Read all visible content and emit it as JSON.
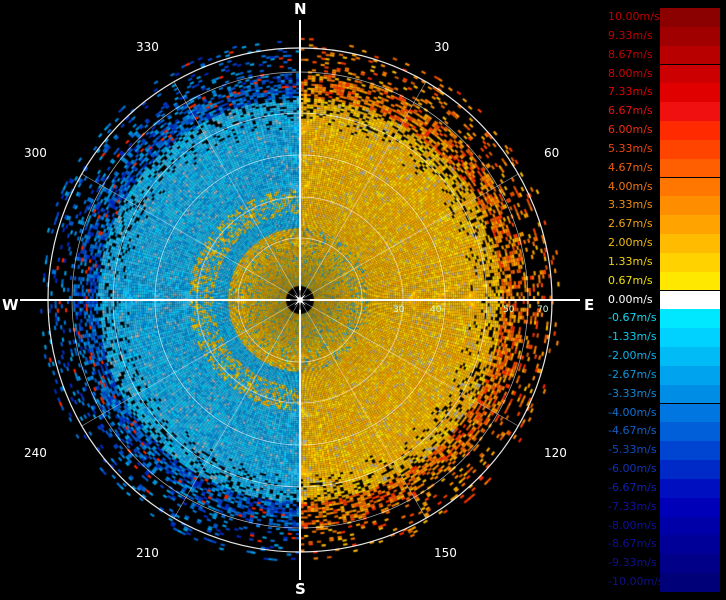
{
  "compass": {
    "north": "N",
    "south": "S",
    "east": "E",
    "west": "W",
    "azimuth_labels": [
      "30",
      "60",
      "120",
      "150",
      "210",
      "240",
      "300",
      "330"
    ]
  },
  "range_rings": {
    "labels": [
      "30",
      "40",
      "50",
      "70"
    ]
  },
  "legend": {
    "entries": [
      {
        "label": "10.00m/s",
        "color": "#8b0000",
        "text_color": "#c00000"
      },
      {
        "label": "9.33m/s",
        "color": "#a00000",
        "text_color": "#c00000"
      },
      {
        "label": "8.67m/s",
        "color": "#b80000",
        "text_color": "#c00000"
      },
      {
        "label": "8.00m/s",
        "color": "#cc0000",
        "text_color": "#d00000"
      },
      {
        "label": "7.33m/s",
        "color": "#e00000",
        "text_color": "#e00000"
      },
      {
        "label": "6.67m/s",
        "color": "#f01010",
        "text_color": "#e81010"
      },
      {
        "label": "6.00m/s",
        "color": "#ff2a00",
        "text_color": "#f02a10"
      },
      {
        "label": "5.33m/s",
        "color": "#ff4400",
        "text_color": "#f04410"
      },
      {
        "label": "4.67m/s",
        "color": "#ff5f00",
        "text_color": "#f05f10"
      },
      {
        "label": "4.00m/s",
        "color": "#ff7700",
        "text_color": "#f07710"
      },
      {
        "label": "3.33m/s",
        "color": "#ff8d00",
        "text_color": "#f08d10"
      },
      {
        "label": "2.67m/s",
        "color": "#ffa300",
        "text_color": "#f0a310"
      },
      {
        "label": "2.00m/s",
        "color": "#ffbb00",
        "text_color": "#f0bb10"
      },
      {
        "label": "1.33m/s",
        "color": "#ffd200",
        "text_color": "#f0d010"
      },
      {
        "label": "0.67m/s",
        "color": "#ffe800",
        "text_color": "#f0e010"
      },
      {
        "label": "0.00m/s",
        "color": "#ffffff",
        "text_color": "#ffffff"
      },
      {
        "label": "-0.67m/s",
        "color": "#00e8ff",
        "text_color": "#10d8f0"
      },
      {
        "label": "-1.33m/s",
        "color": "#00d2ff",
        "text_color": "#10c8f0"
      },
      {
        "label": "-2.00m/s",
        "color": "#00bbf5",
        "text_color": "#10b0e8"
      },
      {
        "label": "-2.67m/s",
        "color": "#00a3ee",
        "text_color": "#1098e0"
      },
      {
        "label": "-3.33m/s",
        "color": "#008de6",
        "text_color": "#1088d8"
      },
      {
        "label": "-4.00m/s",
        "color": "#0077e0",
        "text_color": "#1070d0"
      },
      {
        "label": "-4.67m/s",
        "color": "#005fd9",
        "text_color": "#1060c8"
      },
      {
        "label": "-5.33m/s",
        "color": "#0044d2",
        "text_color": "#1048c0"
      },
      {
        "label": "-6.00m/s",
        "color": "#002ac8",
        "text_color": "#1030b8"
      },
      {
        "label": "-6.67m/s",
        "color": "#0010c0",
        "text_color": "#1020b0"
      },
      {
        "label": "-7.33m/s",
        "color": "#0000b8",
        "text_color": "#1010a8"
      },
      {
        "label": "-8.00m/s",
        "color": "#0000a8",
        "text_color": "#1010a0"
      },
      {
        "label": "-8.67m/s",
        "color": "#000098",
        "text_color": "#101098"
      },
      {
        "label": "-9.33m/s",
        "color": "#000088",
        "text_color": "#101090"
      },
      {
        "label": "-10.00m/s",
        "color": "#000078",
        "text_color": "#101088"
      }
    ]
  },
  "colors": {
    "background": "#000000",
    "grid": "#ffffff",
    "positive": "#f0b000",
    "negative": "#20a8e0"
  }
}
